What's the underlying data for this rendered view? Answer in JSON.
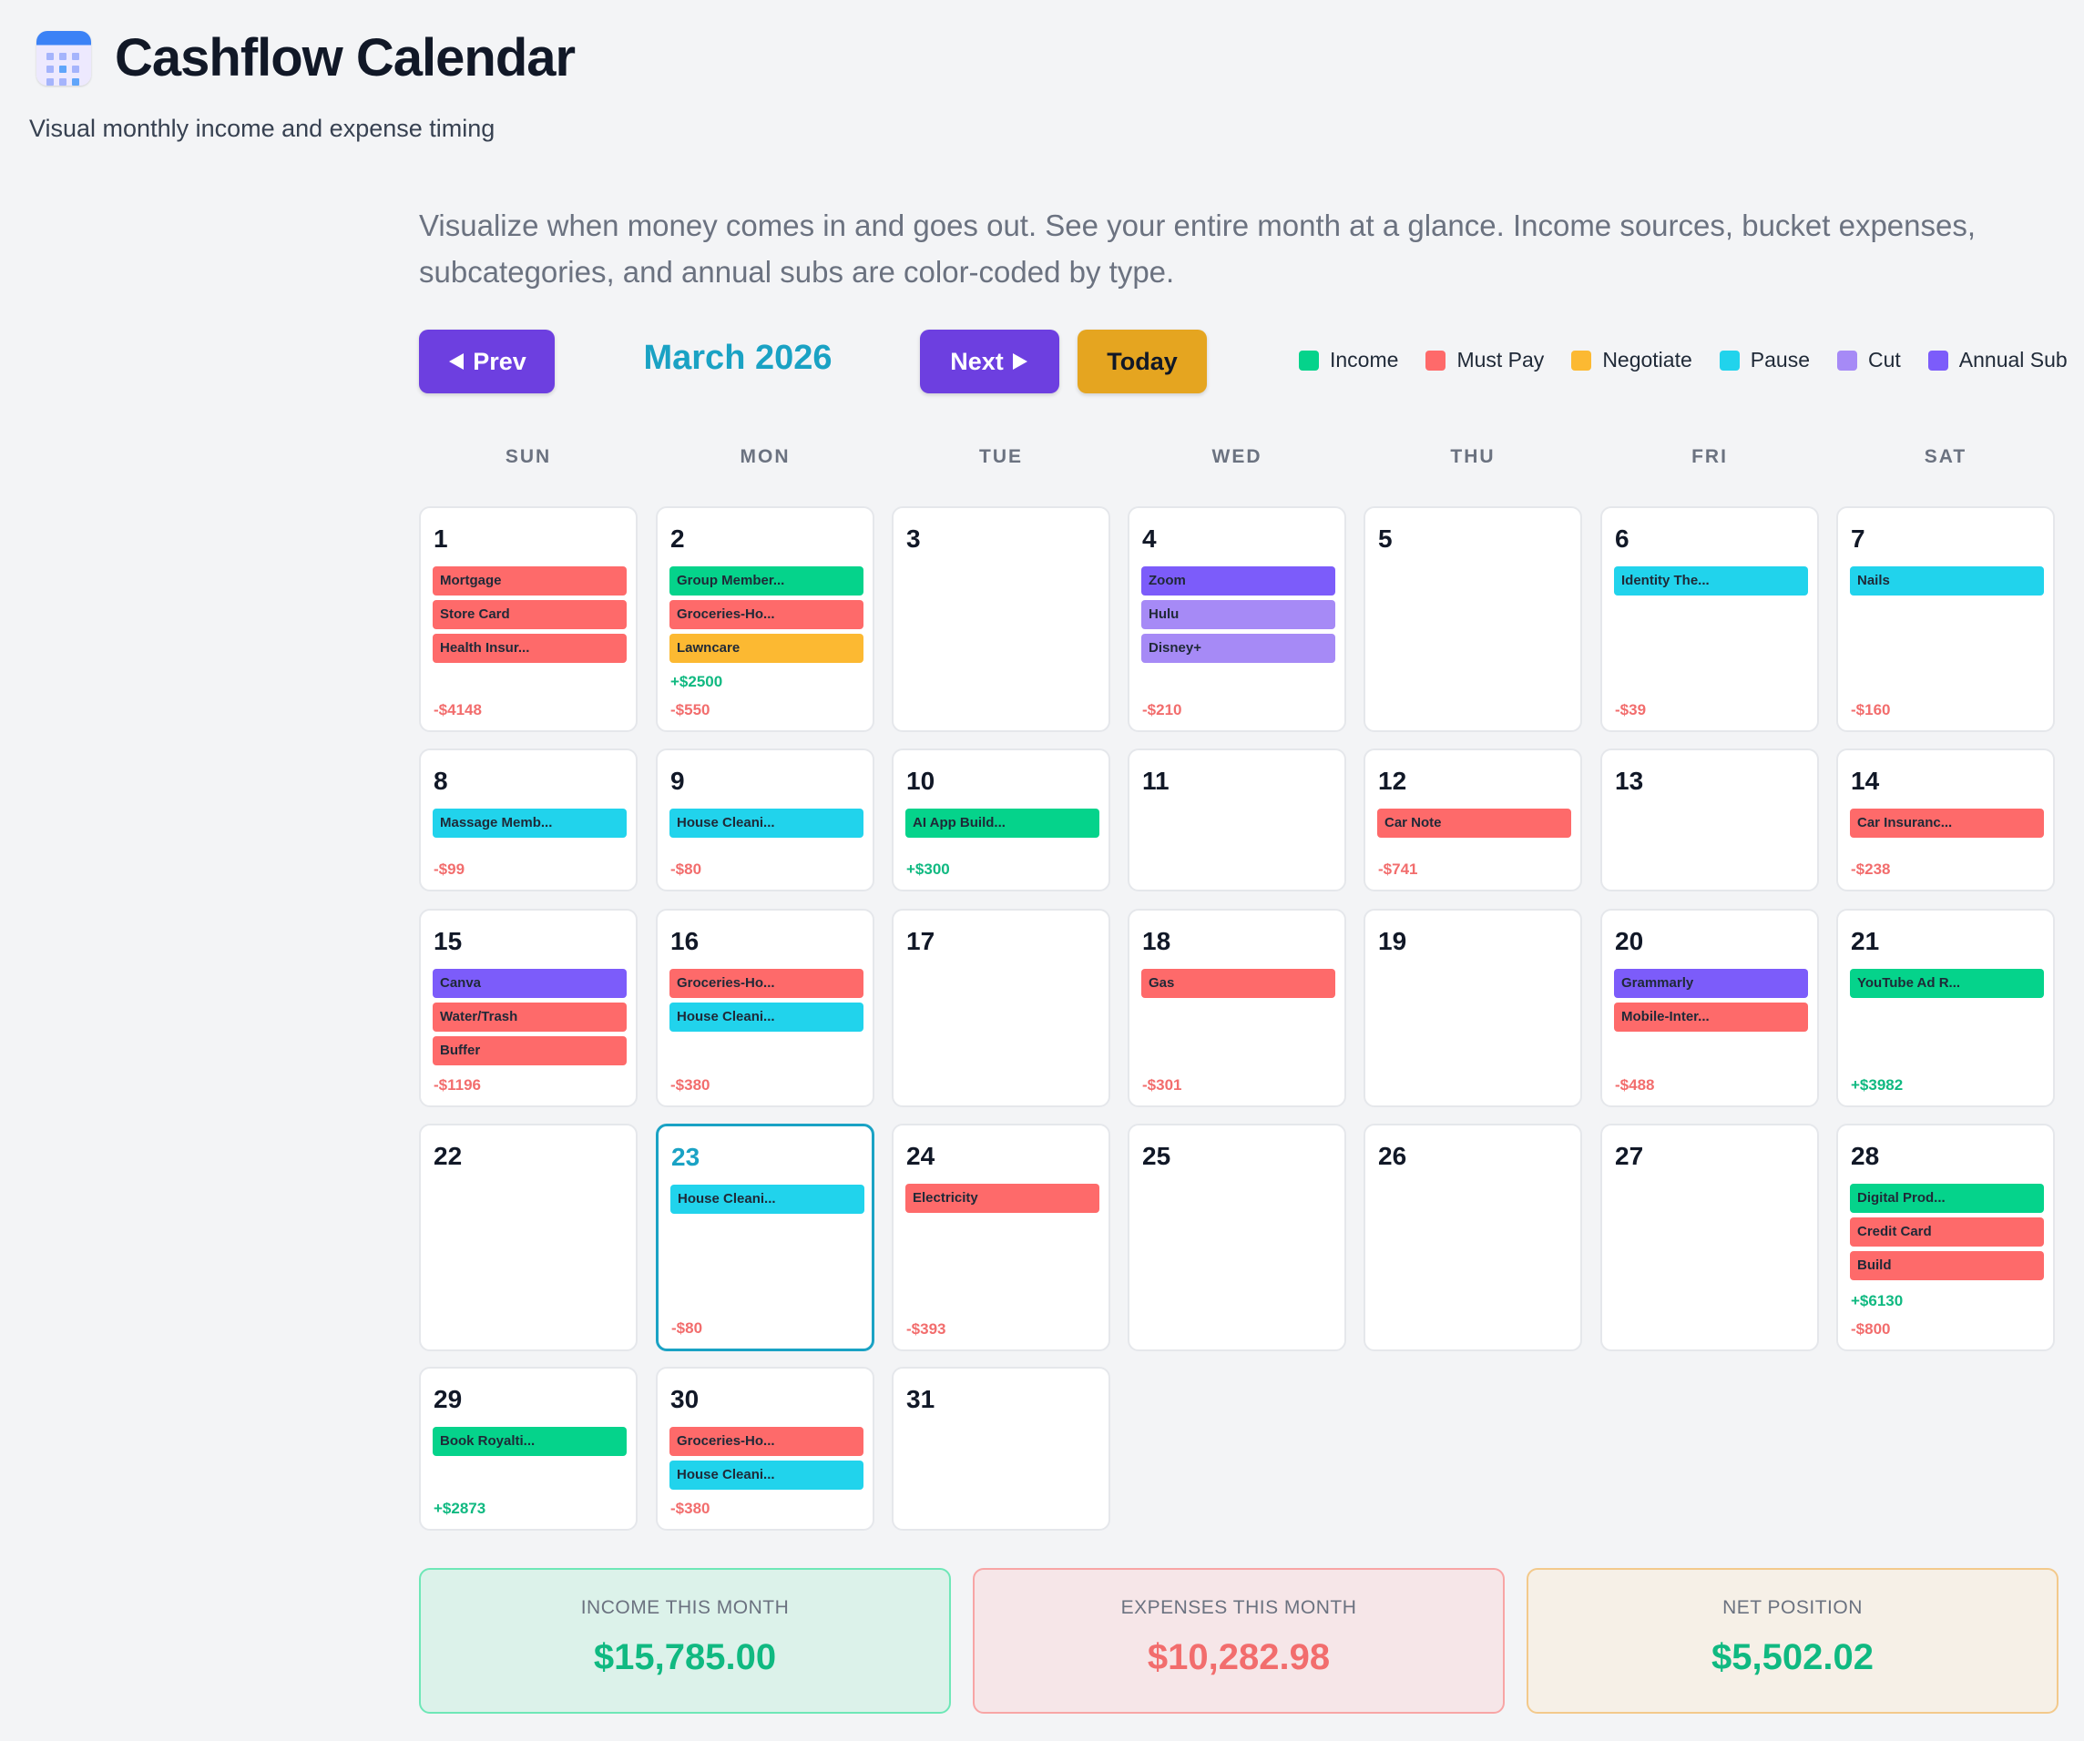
{
  "app": {
    "title": "Cashflow Calendar",
    "subtitle": "Visual monthly income and expense timing",
    "intro": "Visualize when money comes in and goes out. See your entire month at a glance. Income sources, bucket expenses, subcategories, and annual subs are color-coded by type."
  },
  "toolbar": {
    "prev_label": "Prev",
    "next_label": "Next",
    "today_label": "Today",
    "month_label": "March 2026"
  },
  "colors": {
    "income": "#05d38b",
    "must_pay": "#fe6a6a",
    "negotiate": "#fcb932",
    "pause": "#21d3ec",
    "cut": "#a68af6",
    "annual_sub": "#7c5cfa"
  },
  "legend": [
    {
      "label": "Income",
      "color": "#05d38b"
    },
    {
      "label": "Must Pay",
      "color": "#fe6a6a"
    },
    {
      "label": "Negotiate",
      "color": "#fcb932"
    },
    {
      "label": "Pause",
      "color": "#21d3ec"
    },
    {
      "label": "Cut",
      "color": "#a68af6"
    },
    {
      "label": "Annual Sub",
      "color": "#7c5cfa"
    }
  ],
  "weekdays": [
    "SUN",
    "MON",
    "TUE",
    "WED",
    "THU",
    "FRI",
    "SAT"
  ],
  "today_day": 23,
  "days": [
    {
      "day": "1",
      "events": [
        {
          "label": "Mortgage",
          "type": "must_pay"
        },
        {
          "label": "Store Card",
          "type": "must_pay"
        },
        {
          "label": "Health Insur...",
          "type": "must_pay"
        }
      ],
      "totals": [
        {
          "text": "-$4148",
          "sign": "neg"
        }
      ]
    },
    {
      "day": "2",
      "events": [
        {
          "label": "Group Member...",
          "type": "income"
        },
        {
          "label": "Groceries-Ho...",
          "type": "must_pay"
        },
        {
          "label": "Lawncare",
          "type": "negotiate"
        }
      ],
      "totals": [
        {
          "text": "+$2500",
          "sign": "pos"
        },
        {
          "text": "-$550",
          "sign": "neg"
        }
      ]
    },
    {
      "day": "3",
      "events": [],
      "totals": []
    },
    {
      "day": "4",
      "events": [
        {
          "label": "Zoom",
          "type": "annual_sub"
        },
        {
          "label": "Hulu",
          "type": "cut"
        },
        {
          "label": "Disney+",
          "type": "cut"
        }
      ],
      "totals": [
        {
          "text": "-$210",
          "sign": "neg"
        }
      ]
    },
    {
      "day": "5",
      "events": [],
      "totals": []
    },
    {
      "day": "6",
      "events": [
        {
          "label": "Identity The...",
          "type": "pause"
        }
      ],
      "totals": [
        {
          "text": "-$39",
          "sign": "neg"
        }
      ]
    },
    {
      "day": "7",
      "events": [
        {
          "label": "Nails",
          "type": "pause"
        }
      ],
      "totals": [
        {
          "text": "-$160",
          "sign": "neg"
        }
      ]
    },
    {
      "day": "8",
      "events": [
        {
          "label": "Massage Memb...",
          "type": "pause"
        }
      ],
      "totals": [
        {
          "text": "-$99",
          "sign": "neg"
        }
      ]
    },
    {
      "day": "9",
      "events": [
        {
          "label": "House Cleani...",
          "type": "pause"
        }
      ],
      "totals": [
        {
          "text": "-$80",
          "sign": "neg"
        }
      ]
    },
    {
      "day": "10",
      "events": [
        {
          "label": "AI App Build...",
          "type": "income"
        }
      ],
      "totals": [
        {
          "text": "+$300",
          "sign": "pos"
        }
      ]
    },
    {
      "day": "11",
      "events": [],
      "totals": []
    },
    {
      "day": "12",
      "events": [
        {
          "label": "Car Note",
          "type": "must_pay"
        }
      ],
      "totals": [
        {
          "text": "-$741",
          "sign": "neg"
        }
      ]
    },
    {
      "day": "13",
      "events": [],
      "totals": []
    },
    {
      "day": "14",
      "events": [
        {
          "label": "Car Insuranc...",
          "type": "must_pay"
        }
      ],
      "totals": [
        {
          "text": "-$238",
          "sign": "neg"
        }
      ]
    },
    {
      "day": "15",
      "events": [
        {
          "label": "Canva",
          "type": "annual_sub"
        },
        {
          "label": "Water/Trash",
          "type": "must_pay"
        },
        {
          "label": "Buffer",
          "type": "must_pay"
        }
      ],
      "totals": [
        {
          "text": "-$1196",
          "sign": "neg"
        }
      ]
    },
    {
      "day": "16",
      "events": [
        {
          "label": "Groceries-Ho...",
          "type": "must_pay"
        },
        {
          "label": "House Cleani...",
          "type": "pause"
        }
      ],
      "totals": [
        {
          "text": "-$380",
          "sign": "neg"
        }
      ]
    },
    {
      "day": "17",
      "events": [],
      "totals": []
    },
    {
      "day": "18",
      "events": [
        {
          "label": "Gas",
          "type": "must_pay"
        }
      ],
      "totals": [
        {
          "text": "-$301",
          "sign": "neg"
        }
      ]
    },
    {
      "day": "19",
      "events": [],
      "totals": []
    },
    {
      "day": "20",
      "events": [
        {
          "label": "Grammarly",
          "type": "annual_sub"
        },
        {
          "label": "Mobile-Inter...",
          "type": "must_pay"
        }
      ],
      "totals": [
        {
          "text": "-$488",
          "sign": "neg"
        }
      ]
    },
    {
      "day": "21",
      "events": [
        {
          "label": "YouTube Ad R...",
          "type": "income"
        }
      ],
      "totals": [
        {
          "text": "+$3982",
          "sign": "pos"
        }
      ]
    },
    {
      "day": "22",
      "events": [],
      "totals": []
    },
    {
      "day": "23",
      "events": [
        {
          "label": "House Cleani...",
          "type": "pause"
        }
      ],
      "totals": [
        {
          "text": "-$80",
          "sign": "neg"
        }
      ]
    },
    {
      "day": "24",
      "events": [
        {
          "label": "Electricity",
          "type": "must_pay"
        }
      ],
      "totals": [
        {
          "text": "-$393",
          "sign": "neg"
        }
      ]
    },
    {
      "day": "25",
      "events": [],
      "totals": []
    },
    {
      "day": "26",
      "events": [],
      "totals": []
    },
    {
      "day": "27",
      "events": [],
      "totals": []
    },
    {
      "day": "28",
      "events": [
        {
          "label": "Digital Prod...",
          "type": "income"
        },
        {
          "label": "Credit Card",
          "type": "must_pay"
        },
        {
          "label": "Build",
          "type": "must_pay"
        }
      ],
      "totals": [
        {
          "text": "+$6130",
          "sign": "pos"
        },
        {
          "text": "-$800",
          "sign": "neg"
        }
      ]
    },
    {
      "day": "29",
      "events": [
        {
          "label": "Book Royalti...",
          "type": "income"
        }
      ],
      "totals": [
        {
          "text": "+$2873",
          "sign": "pos"
        }
      ]
    },
    {
      "day": "30",
      "events": [
        {
          "label": "Groceries-Ho...",
          "type": "must_pay"
        },
        {
          "label": "House Cleani...",
          "type": "pause"
        }
      ],
      "totals": [
        {
          "text": "-$380",
          "sign": "neg"
        }
      ]
    },
    {
      "day": "31",
      "events": [],
      "totals": []
    }
  ],
  "summary": {
    "income": {
      "label": "INCOME THIS MONTH",
      "value": "$15,785.00",
      "color": "#10b981",
      "bg": "#dcf2ea",
      "border": "#6ee7b7"
    },
    "expenses": {
      "label": "EXPENSES THIS MONTH",
      "value": "$10,282.98",
      "color": "#f26d6d",
      "bg": "#f6e6e8",
      "border": "#f8a5a5"
    },
    "net": {
      "label": "NET POSITION",
      "value": "$5,502.02",
      "color": "#10b981",
      "bg": "#f6f0e7",
      "border": "#f3c98b"
    }
  }
}
